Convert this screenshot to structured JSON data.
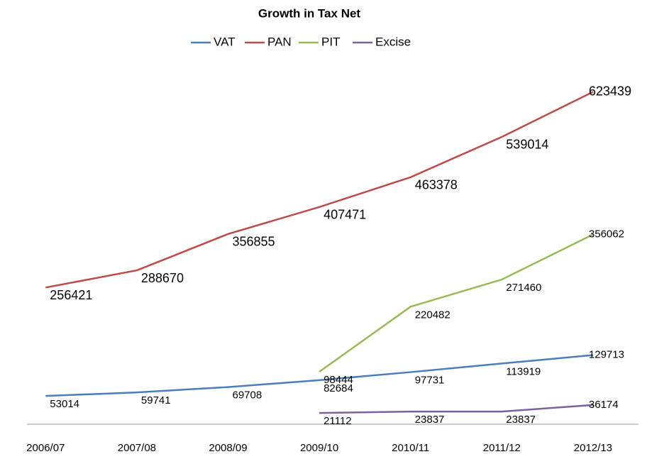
{
  "chart_data": {
    "type": "line",
    "title": "Growth in Tax Net",
    "categories": [
      "2006/07",
      "2007/08",
      "2008/09",
      "2009/10",
      "2010/11",
      "2011/12",
      "2012/13"
    ],
    "series": [
      {
        "name": "VAT",
        "color": "#4a7ebb",
        "values": [
          53014,
          59741,
          69708,
          82684,
          97731,
          113919,
          129713
        ]
      },
      {
        "name": "PAN",
        "color": "#be4b48",
        "values": [
          256421,
          288670,
          356855,
          407471,
          463378,
          539014,
          623439
        ]
      },
      {
        "name": "PIT",
        "color": "#98b954",
        "values": [
          null,
          null,
          null,
          98444,
          220482,
          271460,
          356062
        ]
      },
      {
        "name": "Excise",
        "color": "#7d60a0",
        "values": [
          null,
          null,
          null,
          21112,
          23837,
          23837,
          36174
        ]
      }
    ],
    "ylim": [
      0,
      700000
    ]
  }
}
